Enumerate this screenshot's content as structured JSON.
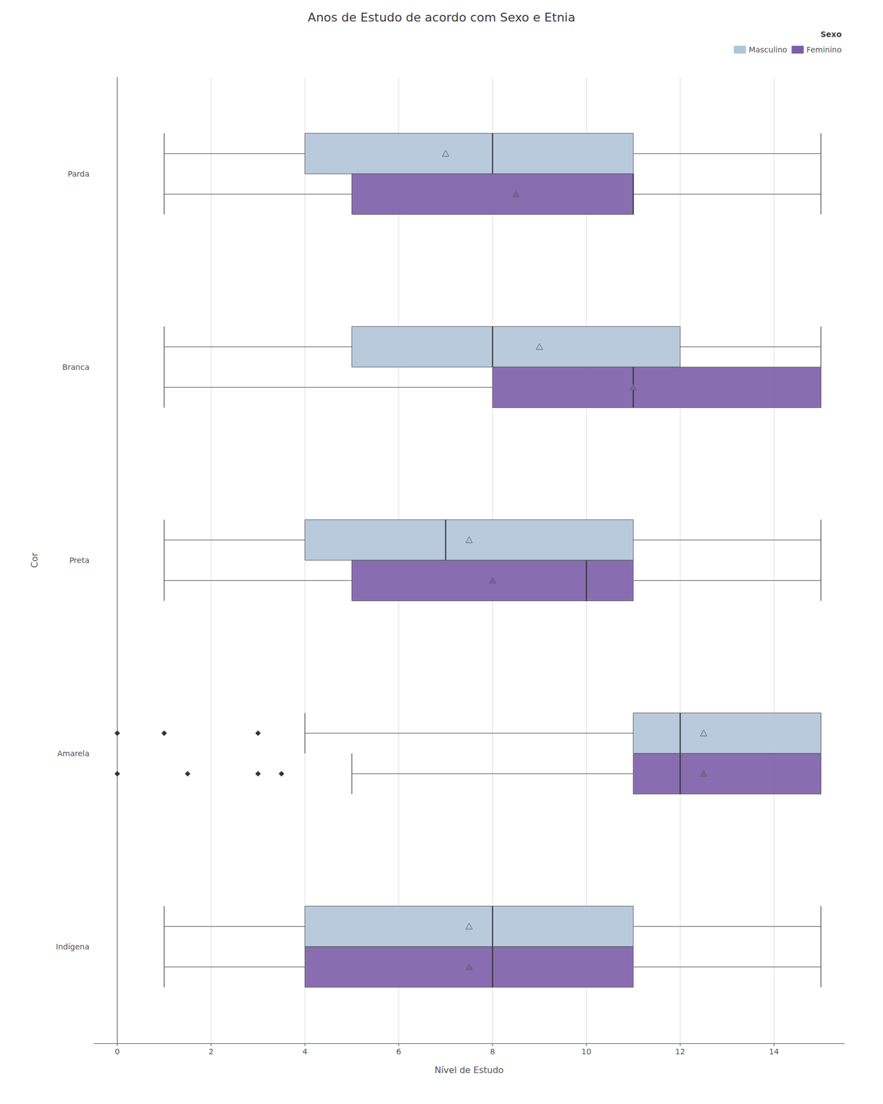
{
  "chart_data": {
    "type": "boxplot",
    "orientation": "horizontal",
    "title": "Anos de Estudo de acordo com Sexo e Etnia",
    "xlabel": "Nível de Estudo",
    "ylabel": "Cor",
    "categories": [
      "Parda",
      "Branca",
      "Preta",
      "Amarela",
      "Indígena"
    ],
    "legend_title": "Sexo",
    "legend": "upper right",
    "grid": "x",
    "xlim": [
      -0.5,
      15.5
    ],
    "xticks": [
      0,
      2,
      4,
      6,
      8,
      10,
      12,
      14
    ],
    "series": [
      {
        "name": "Masculino",
        "color": "#b0c4d8",
        "values": [
          [
            1.0,
            4.0,
            8.0,
            11.0,
            15.0
          ],
          [
            1.0,
            5.0,
            8.0,
            12.0,
            15.0
          ],
          [
            1.0,
            4.0,
            7.0,
            11.0,
            15.0
          ],
          [
            4.0,
            11.0,
            12.0,
            15.0,
            15.0
          ],
          [
            1.0,
            4.0,
            8.0,
            11.0,
            15.0
          ]
        ],
        "means": [
          7.0,
          9.0,
          7.5,
          12.5,
          7.5
        ],
        "fliers": [
          [],
          [],
          [],
          [
            0.0,
            1.0,
            3.0
          ],
          []
        ]
      },
      {
        "name": "Feminino",
        "color": "#7b5ea7",
        "values": [
          [
            1.0,
            5.0,
            11.0,
            11.0,
            15.0
          ],
          [
            1.0,
            8.0,
            11.0,
            15.0,
            15.0
          ],
          [
            1.0,
            5.0,
            10.0,
            11.0,
            15.0
          ],
          [
            5.0,
            11.0,
            12.0,
            15.0,
            15.0
          ],
          [
            1.0,
            4.0,
            8.0,
            11.0,
            15.0
          ]
        ],
        "means": [
          8.5,
          11.0,
          8.0,
          12.5,
          7.5
        ],
        "fliers": [
          [],
          [],
          [],
          [
            0.0,
            1.5,
            3.0,
            3.5
          ],
          []
        ]
      }
    ]
  }
}
